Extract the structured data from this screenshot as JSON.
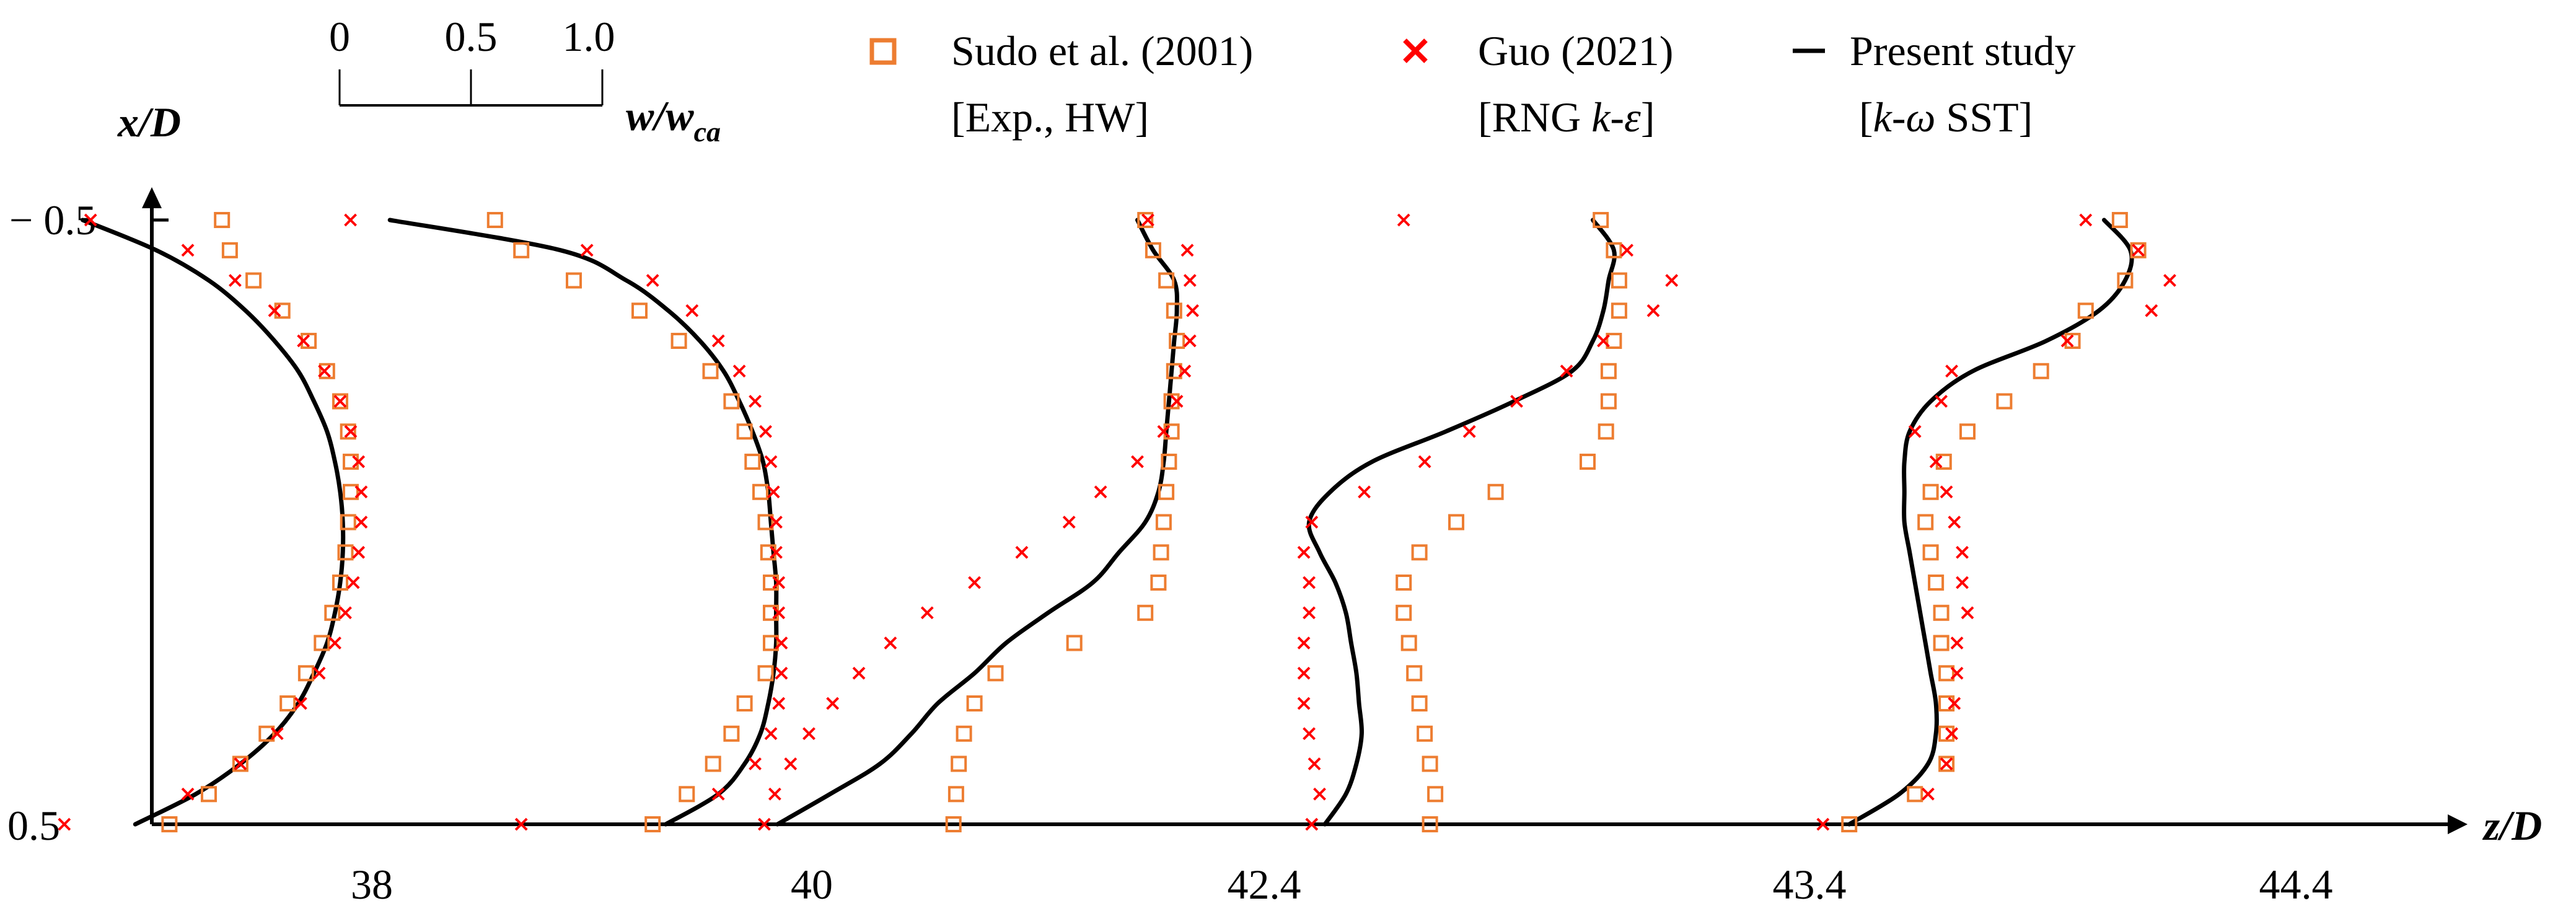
{
  "chart_data": {
    "type": "line",
    "title": "",
    "xlabel": "z/D",
    "ylabel": "x/D",
    "ylim": [
      -0.5,
      0.5
    ],
    "y_ticks": [
      "− 0.5",
      "0.5"
    ],
    "y_ticks_mirror": "0.5",
    "profile_stations": [
      "38",
      "40",
      "42.4",
      "43.4",
      "44.4"
    ],
    "profile_unit": "w/w_ca",
    "scale_bar": {
      "ticks": [
        "0",
        "0.5",
        "1.0"
      ],
      "label_main": "w/w",
      "label_sub": "ca"
    },
    "legend": [
      {
        "marker": "square",
        "color": "#ED7D31",
        "name": "Sudo et al. (2001)",
        "desc": "[Exp., HW]"
      },
      {
        "marker": "cross",
        "color": "#FF0000",
        "name": "Guo (2021)",
        "desc_pre": "[RNG ",
        "desc_it": "k-ε",
        "desc_post": "]"
      },
      {
        "marker": "line",
        "color": "#000000",
        "name": "Present study",
        "desc_pre": "[",
        "desc_it": "k-ω",
        "desc_post": " SST]"
      }
    ],
    "x_positions": [
      -0.5,
      -0.45,
      -0.4,
      -0.35,
      -0.3,
      -0.25,
      -0.2,
      -0.15,
      -0.1,
      -0.05,
      0,
      0.05,
      0.1,
      0.15,
      0.2,
      0.25,
      0.3,
      0.35,
      0.4,
      0.45,
      0.5
    ],
    "profiles": [
      {
        "station": "38",
        "present": [
          0.02,
          0.3,
          0.5,
          0.64,
          0.75,
          0.84,
          0.9,
          0.95,
          0.98,
          1.0,
          1.01,
          1.01,
          1.0,
          0.98,
          0.95,
          0.9,
          0.84,
          0.75,
          0.62,
          0.45,
          0.22
        ],
        "sudo": [
          0.55,
          0.58,
          0.67,
          0.78,
          0.88,
          0.95,
          1.0,
          1.03,
          1.04,
          1.04,
          1.03,
          1.02,
          1.0,
          0.97,
          0.93,
          0.87,
          0.8,
          0.72,
          0.62,
          0.5,
          0.35
        ],
        "guo": [
          0.05,
          0.42,
          0.6,
          0.75,
          0.86,
          0.94,
          1.0,
          1.04,
          1.07,
          1.08,
          1.08,
          1.07,
          1.05,
          1.02,
          0.98,
          0.92,
          0.85,
          0.76,
          0.62,
          0.42,
          -0.05
        ]
      },
      {
        "station": "40",
        "present": [
          -0.45,
          0.2,
          0.45,
          0.61,
          0.73,
          0.82,
          0.88,
          0.93,
          0.97,
          0.99,
          1.0,
          1.01,
          1.02,
          1.02,
          1.02,
          1.01,
          0.99,
          0.96,
          0.9,
          0.8,
          0.6
        ],
        "sudo": [
          -0.05,
          0.05,
          0.25,
          0.5,
          0.65,
          0.77,
          0.85,
          0.9,
          0.93,
          0.96,
          0.98,
          0.99,
          1.0,
          1.0,
          1.0,
          0.98,
          0.9,
          0.85,
          0.78,
          0.68,
          0.55
        ],
        "guo": [
          -0.6,
          0.3,
          0.55,
          0.7,
          0.8,
          0.88,
          0.94,
          0.98,
          1.0,
          1.01,
          1.02,
          1.02,
          1.03,
          1.03,
          1.04,
          1.04,
          1.03,
          1.0,
          0.94,
          0.8,
          0.05
        ]
      },
      {
        "station": "42.4",
        "present": [
          0.52,
          0.58,
          0.66,
          0.67,
          0.66,
          0.65,
          0.64,
          0.63,
          0.62,
          0.6,
          0.55,
          0.45,
          0.35,
          0.18,
          0.02,
          -0.1,
          -0.24,
          -0.34,
          -0.46,
          -0.65,
          -0.85
        ],
        "sudo": [
          0.55,
          0.58,
          0.63,
          0.66,
          0.67,
          0.66,
          0.65,
          0.65,
          0.64,
          0.63,
          0.62,
          0.61,
          0.6,
          0.55,
          0.28,
          -0.02,
          -0.1,
          -0.14,
          -0.16,
          -0.17,
          -0.18
        ],
        "guo": [
          0.56,
          0.71,
          0.72,
          0.73,
          0.72,
          0.7,
          0.67,
          0.62,
          0.52,
          0.38,
          0.26,
          0.08,
          -0.1,
          -0.28,
          -0.42,
          -0.54,
          -0.64,
          -0.73,
          -0.8,
          -0.86,
          -0.9
        ]
      },
      {
        "station": "43.4",
        "present": [
          0.52,
          0.6,
          0.58,
          0.56,
          0.52,
          0.44,
          0.22,
          -0.04,
          -0.32,
          -0.48,
          -0.56,
          -0.52,
          -0.46,
          -0.42,
          -0.4,
          -0.38,
          -0.37,
          -0.36,
          -0.38,
          -0.42,
          -0.5
        ],
        "sudo": [
          0.55,
          0.6,
          0.62,
          0.62,
          0.6,
          0.58,
          0.58,
          0.57,
          0.5,
          0.15,
          0.0,
          -0.14,
          -0.2,
          -0.2,
          -0.18,
          -0.16,
          -0.14,
          -0.12,
          -0.1,
          -0.08,
          -0.1
        ],
        "guo": [
          -0.2,
          0.65,
          0.82,
          0.75,
          0.56,
          0.42,
          0.23,
          0.05,
          -0.12,
          -0.35,
          -0.55,
          -0.58,
          -0.56,
          -0.56,
          -0.58,
          -0.58,
          -0.58,
          -0.56,
          -0.54,
          -0.52,
          -0.55
        ]
      },
      {
        "station": "44.4",
        "present": [
          0.52,
          0.62,
          0.6,
          0.5,
          0.3,
          0.02,
          -0.14,
          -0.22,
          -0.24,
          -0.24,
          -0.24,
          -0.22,
          -0.2,
          -0.18,
          -0.16,
          -0.14,
          -0.12,
          -0.12,
          -0.15,
          -0.26,
          -0.45
        ],
        "sudo": [
          0.58,
          0.65,
          0.6,
          0.45,
          0.4,
          0.28,
          0.14,
          0.0,
          -0.09,
          -0.14,
          -0.16,
          -0.14,
          -0.12,
          -0.1,
          -0.1,
          -0.08,
          -0.08,
          -0.08,
          -0.08,
          -0.2,
          -0.45
        ],
        "guo": [
          0.45,
          0.65,
          0.77,
          0.7,
          0.38,
          -0.06,
          -0.1,
          -0.2,
          -0.12,
          -0.08,
          -0.05,
          -0.02,
          -0.02,
          0.0,
          -0.04,
          -0.04,
          -0.05,
          -0.06,
          -0.08,
          -0.15,
          -0.55
        ]
      }
    ]
  }
}
